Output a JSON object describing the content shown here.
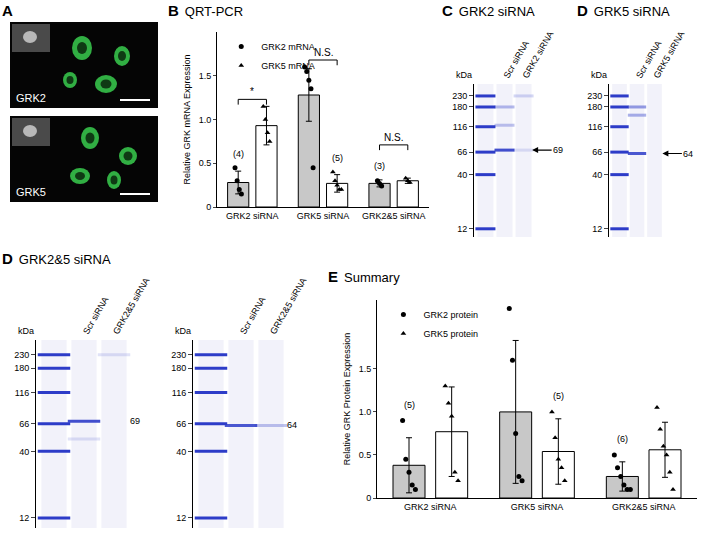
{
  "chart_data": [
    {
      "panel": "A",
      "type": "image",
      "labels": [
        "GRK2",
        "GRK5"
      ]
    },
    {
      "panel": "B",
      "title": "QRT-PCR",
      "type": "bar",
      "y_label": "Relative GRK mRNA Expression",
      "categories": [
        "GRK2 siRNA",
        "GRK5 siRNA",
        "GRK2&5 siRNA"
      ],
      "ylim": [
        0,
        2.0
      ],
      "yticks": [
        0,
        0.5,
        {
          "value": 1,
          "label": "1.0"
        },
        1.5
      ],
      "legend": "upper left",
      "series": [
        {
          "name": "GRK2 mRNA",
          "color": "#c8c8c8",
          "marker": "circle",
          "values": [
            0.28,
            1.28,
            0.27
          ],
          "errors": [
            0.13,
            0.3,
            0.04
          ],
          "points": [
            [
              0.45,
              0.3,
              0.2,
              0.15
            ],
            [
              1.6,
              1.55,
              1.45,
              1.35,
              0.45
            ],
            [
              0.3,
              0.27,
              0.24
            ]
          ]
        },
        {
          "name": "GRK5 mRNA",
          "color": "#ffffff",
          "marker": "triangle-up",
          "values": [
            0.93,
            0.27,
            0.3
          ],
          "errors": [
            0.22,
            0.1,
            0.03
          ],
          "points": [
            [
              1.15,
              1.0,
              0.85,
              0.75
            ],
            [
              0.4,
              0.3,
              0.25,
              0.2,
              0.2
            ],
            [
              0.33,
              0.3,
              0.28
            ]
          ]
        }
      ],
      "n_labels": [
        "(4)",
        "(5)",
        "(3)"
      ],
      "significance": [
        "*",
        "N.S.",
        "N.S."
      ]
    },
    {
      "panel": "C",
      "title": "GRK2 siRNA",
      "type": "blot",
      "y_label": "kDa",
      "log": "y",
      "ylim": [
        10,
        300
      ],
      "yticks": [
        12,
        40,
        66,
        116,
        180,
        230
      ],
      "blots": [
        {
          "categories": [
            null,
            "Scr siRNA",
            "GRK2 siRNA"
          ],
          "bands": [
            [
              12,
              40,
              66,
              116,
              180,
              230
            ],
            [
              180,
              120,
              69
            ],
            [
              230,
              69
            ]
          ],
          "intensity": [
            [
              1,
              1,
              1,
              1,
              1,
              1
            ],
            [
              0.35,
              0.3,
              0.9
            ],
            [
              0.2,
              0.15
            ]
          ],
          "marker_label": {
            "text": "69",
            "kDa": 69,
            "arrow": true
          }
        }
      ]
    },
    {
      "panel": "D",
      "title": "GRK5 siRNA",
      "type": "blot",
      "y_label": "kDa",
      "log": "y",
      "ylim": [
        10,
        300
      ],
      "yticks": [
        12,
        40,
        66,
        116,
        180,
        230
      ],
      "blots": [
        {
          "categories": [
            null,
            "Scr siRNA",
            "GRK5 siRNA"
          ],
          "bands": [
            [
              12,
              40,
              66,
              116,
              180,
              230
            ],
            [
              180,
              150,
              64
            ],
            []
          ],
          "intensity": [
            [
              1,
              1,
              1,
              1,
              1,
              1
            ],
            [
              0.5,
              0.4,
              0.85
            ],
            []
          ],
          "marker_label": {
            "text": "64",
            "kDa": 64,
            "arrow": true
          }
        }
      ]
    },
    {
      "panel": "D",
      "title": "GRK2&5 siRNA",
      "type": "blot",
      "y_label": "kDa",
      "log": "y",
      "ylim": [
        10,
        300
      ],
      "yticks": [
        12,
        40,
        66,
        116,
        180,
        230
      ],
      "blots": [
        {
          "categories": [
            null,
            "Scr siRNA",
            "GRK2&5 siRNA"
          ],
          "bands": [
            [
              12,
              40,
              66,
              116,
              180,
              230
            ],
            [
              69,
              50
            ],
            [
              230
            ]
          ],
          "intensity": [
            [
              1,
              1,
              1,
              1,
              1,
              1
            ],
            [
              0.9,
              0.15
            ],
            [
              0.15
            ]
          ],
          "marker_label": {
            "text": "69",
            "kDa": 69,
            "arrow": false
          }
        },
        {
          "categories": [
            null,
            "Scr siRNA",
            "GRK2&5 siRNA"
          ],
          "bands": [
            [
              12,
              40,
              66,
              116,
              180,
              230
            ],
            [
              64
            ],
            [
              64
            ]
          ],
          "intensity": [
            [
              1,
              1,
              1,
              1,
              1,
              1
            ],
            [
              0.85
            ],
            [
              0.3
            ]
          ],
          "marker_label": {
            "text": "64",
            "kDa": 64,
            "arrow": false
          }
        }
      ]
    },
    {
      "panel": "E",
      "title": "Summary",
      "type": "bar",
      "y_label": "Relative GRK Protein Expression",
      "categories": [
        "GRK2 siRNA",
        "GRK5 siRNA",
        "GRK2&5 siRNA"
      ],
      "ylim": [
        0,
        2.3
      ],
      "yticks": [
        0,
        0.5,
        {
          "value": 1,
          "label": "1.0"
        },
        1.5
      ],
      "legend": "upper left",
      "series": [
        {
          "name": "GRK2 protein",
          "color": "#c8c8c8",
          "marker": "circle",
          "values": [
            0.38,
            1.0,
            0.25
          ],
          "errors": [
            0.32,
            0.83,
            0.17
          ],
          "points": [
            [
              0.9,
              0.45,
              0.3,
              0.15,
              0.1
            ],
            [
              2.2,
              1.6,
              0.75,
              0.25,
              0.2
            ],
            [
              0.5,
              0.35,
              0.25,
              0.15,
              0.1,
              0.1
            ]
          ]
        },
        {
          "name": "GRK5 protein",
          "color": "#ffffff",
          "marker": "triangle-up",
          "values": [
            0.77,
            0.54,
            0.56
          ],
          "errors": [
            0.52,
            0.38,
            0.32
          ],
          "points": [
            [
              1.3,
              1.1,
              0.95,
              0.3,
              0.2
            ],
            [
              1.0,
              0.7,
              0.45,
              0.35,
              0.2
            ],
            [
              1.05,
              0.8,
              0.6,
              0.5,
              0.3,
              0.1
            ]
          ]
        }
      ],
      "n_labels": [
        "(5)",
        "(5)",
        "(6)"
      ]
    }
  ]
}
